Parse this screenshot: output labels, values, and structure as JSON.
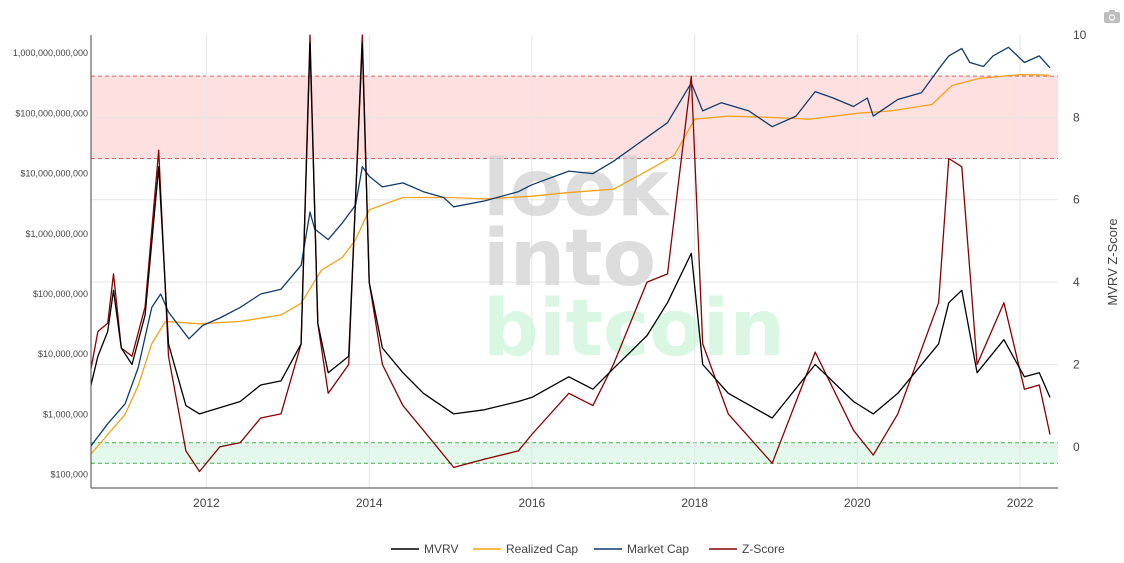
{
  "chart_data": {
    "type": "line",
    "title": "",
    "watermark": [
      "look",
      "into",
      "bitcoin"
    ],
    "colors": {
      "MVRV": "#000000",
      "Realized Cap": "#f7a21b",
      "Market Cap": "#0f3c6e",
      "Z-Score": "#8b0000",
      "top_band": "#ffd6d6",
      "bottom_band": "#d8f7e6"
    },
    "legend_position": "bottom-center",
    "grid": true,
    "x_axis": {
      "type": "date",
      "range": [
        "2010-08-01",
        "2022-06-20"
      ],
      "tick_labels": [
        "2012",
        "2014",
        "2016",
        "2018",
        "2020",
        "2022"
      ],
      "tick_dates": [
        "2012-01-01",
        "2014-01-01",
        "2016-01-01",
        "2018-01-01",
        "2020-01-01",
        "2022-01-01"
      ]
    },
    "y_left": {
      "scale": "log",
      "range": [
        60000,
        2000000000000
      ],
      "tick_labels": [
        "$100,000",
        "$1,000,000",
        "$10,000,000",
        "$100,000,000",
        "$1,000,000,000",
        "$10,000,000,000",
        "$100,000,000,000",
        "1,000,000,000,000"
      ],
      "tick_values": [
        100000,
        1000000,
        10000000,
        100000000,
        1000000000,
        10000000000,
        100000000000,
        1000000000000
      ]
    },
    "y_right": {
      "label": "MVRV Z-Score",
      "scale": "linear",
      "range": [
        -1,
        10
      ],
      "tick_labels": [
        "0",
        "2",
        "4",
        "6",
        "8",
        "10"
      ],
      "tick_values": [
        0,
        2,
        4,
        6,
        8,
        10
      ]
    },
    "bands": [
      {
        "name": "top",
        "axis": "right",
        "from": 7,
        "to": 9
      },
      {
        "name": "bottom",
        "axis": "right",
        "from": -0.4,
        "to": 0.1
      }
    ],
    "series": [
      {
        "name": "Market Cap",
        "axis": "left",
        "points": [
          [
            "2010-08-01",
            300000
          ],
          [
            "2010-10-15",
            700000
          ],
          [
            "2011-01-01",
            1500000
          ],
          [
            "2011-03-01",
            6000000
          ],
          [
            "2011-05-01",
            60000000
          ],
          [
            "2011-06-10",
            100000000
          ],
          [
            "2011-07-15",
            50000000
          ],
          [
            "2011-10-15",
            18000000
          ],
          [
            "2011-12-15",
            30000000
          ],
          [
            "2012-03-01",
            40000000
          ],
          [
            "2012-06-01",
            60000000
          ],
          [
            "2012-09-01",
            100000000
          ],
          [
            "2012-12-01",
            120000000
          ],
          [
            "2013-03-01",
            300000000
          ],
          [
            "2013-04-10",
            2300000000
          ],
          [
            "2013-05-01",
            1200000000
          ],
          [
            "2013-07-01",
            800000000
          ],
          [
            "2013-09-01",
            1500000000
          ],
          [
            "2013-11-01",
            3000000000
          ],
          [
            "2013-12-01",
            13000000000
          ],
          [
            "2014-01-01",
            9000000000
          ],
          [
            "2014-03-01",
            6000000000
          ],
          [
            "2014-06-01",
            7000000000
          ],
          [
            "2014-09-01",
            5000000000
          ],
          [
            "2014-12-01",
            4000000000
          ],
          [
            "2015-01-15",
            2800000000
          ],
          [
            "2015-06-01",
            3500000000
          ],
          [
            "2015-11-01",
            5000000000
          ],
          [
            "2016-01-01",
            6500000000
          ],
          [
            "2016-06-15",
            11000000000
          ],
          [
            "2016-10-01",
            10000000000
          ],
          [
            "2017-01-01",
            16000000000
          ],
          [
            "2017-06-01",
            40000000000
          ],
          [
            "2017-09-01",
            70000000000
          ],
          [
            "2017-12-17",
            320000000000
          ],
          [
            "2018-02-06",
            110000000000
          ],
          [
            "2018-05-01",
            150000000000
          ],
          [
            "2018-09-01",
            110000000000
          ],
          [
            "2018-12-15",
            60000000000
          ],
          [
            "2019-04-01",
            90000000000
          ],
          [
            "2019-06-26",
            230000000000
          ],
          [
            "2019-09-15",
            180000000000
          ],
          [
            "2019-12-15",
            130000000000
          ],
          [
            "2020-02-15",
            180000000000
          ],
          [
            "2020-03-13",
            90000000000
          ],
          [
            "2020-07-01",
            170000000000
          ],
          [
            "2020-10-15",
            220000000000
          ],
          [
            "2020-12-31",
            540000000000
          ],
          [
            "2021-02-15",
            900000000000
          ],
          [
            "2021-04-14",
            1200000000000
          ],
          [
            "2021-05-20",
            700000000000
          ],
          [
            "2021-07-20",
            600000000000
          ],
          [
            "2021-09-01",
            900000000000
          ],
          [
            "2021-11-10",
            1250000000000
          ],
          [
            "2022-01-20",
            700000000000
          ],
          [
            "2022-03-28",
            900000000000
          ],
          [
            "2022-05-15",
            570000000000
          ]
        ]
      },
      {
        "name": "Realized Cap",
        "axis": "left",
        "points": [
          [
            "2010-08-01",
            220000
          ],
          [
            "2011-01-01",
            1000000
          ],
          [
            "2011-03-01",
            3000000
          ],
          [
            "2011-05-01",
            15000000
          ],
          [
            "2011-07-01",
            35000000
          ],
          [
            "2011-12-01",
            32000000
          ],
          [
            "2012-06-01",
            35000000
          ],
          [
            "2012-12-01",
            45000000
          ],
          [
            "2013-03-01",
            70000000
          ],
          [
            "2013-06-01",
            250000000
          ],
          [
            "2013-09-01",
            400000000
          ],
          [
            "2013-11-01",
            800000000
          ],
          [
            "2014-01-01",
            2500000000
          ],
          [
            "2014-06-01",
            4000000000
          ],
          [
            "2015-01-01",
            4000000000
          ],
          [
            "2015-06-01",
            3800000000
          ],
          [
            "2016-01-01",
            4200000000
          ],
          [
            "2016-06-01",
            4800000000
          ],
          [
            "2017-01-01",
            5500000000
          ],
          [
            "2017-06-01",
            11000000000
          ],
          [
            "2017-10-01",
            20000000000
          ],
          [
            "2018-01-01",
            80000000000
          ],
          [
            "2018-06-01",
            90000000000
          ],
          [
            "2019-01-01",
            85000000000
          ],
          [
            "2019-06-01",
            80000000000
          ],
          [
            "2020-01-01",
            100000000000
          ],
          [
            "2020-06-01",
            110000000000
          ],
          [
            "2020-12-01",
            140000000000
          ],
          [
            "2021-03-01",
            290000000000
          ],
          [
            "2021-07-01",
            380000000000
          ],
          [
            "2022-01-01",
            440000000000
          ],
          [
            "2022-05-15",
            430000000000
          ]
        ]
      },
      {
        "name": "MVRV",
        "axis": "right",
        "points": [
          [
            "2010-08-01",
            1.5
          ],
          [
            "2010-09-01",
            2.2
          ],
          [
            "2010-10-15",
            2.8
          ],
          [
            "2010-11-10",
            3.8
          ],
          [
            "2010-12-15",
            2.4
          ],
          [
            "2011-02-01",
            2.0
          ],
          [
            "2011-04-01",
            3.2
          ],
          [
            "2011-06-01",
            6.8
          ],
          [
            "2011-07-15",
            2.5
          ],
          [
            "2011-10-01",
            1.0
          ],
          [
            "2011-12-01",
            0.8
          ],
          [
            "2012-06-01",
            1.1
          ],
          [
            "2012-09-01",
            1.5
          ],
          [
            "2012-12-01",
            1.6
          ],
          [
            "2013-03-01",
            2.5
          ],
          [
            "2013-04-10",
            9.8
          ],
          [
            "2013-05-15",
            3.0
          ],
          [
            "2013-07-01",
            1.8
          ],
          [
            "2013-10-01",
            2.2
          ],
          [
            "2013-12-01",
            9.8
          ],
          [
            "2014-01-01",
            4.0
          ],
          [
            "2014-03-01",
            2.4
          ],
          [
            "2014-06-01",
            1.8
          ],
          [
            "2014-09-01",
            1.3
          ],
          [
            "2015-01-15",
            0.8
          ],
          [
            "2015-06-01",
            0.9
          ],
          [
            "2015-11-01",
            1.1
          ],
          [
            "2016-01-01",
            1.2
          ],
          [
            "2016-06-15",
            1.7
          ],
          [
            "2016-10-01",
            1.4
          ],
          [
            "2017-01-01",
            1.9
          ],
          [
            "2017-06-01",
            2.7
          ],
          [
            "2017-09-01",
            3.5
          ],
          [
            "2017-12-17",
            4.7
          ],
          [
            "2018-02-06",
            2.0
          ],
          [
            "2018-06-01",
            1.3
          ],
          [
            "2018-12-15",
            0.7
          ],
          [
            "2019-06-26",
            2.0
          ],
          [
            "2019-12-15",
            1.1
          ],
          [
            "2020-03-13",
            0.8
          ],
          [
            "2020-07-01",
            1.3
          ],
          [
            "2020-12-31",
            2.5
          ],
          [
            "2021-02-15",
            3.5
          ],
          [
            "2021-04-14",
            3.8
          ],
          [
            "2021-06-22",
            1.8
          ],
          [
            "2021-10-20",
            2.6
          ],
          [
            "2022-01-20",
            1.7
          ],
          [
            "2022-03-28",
            1.8
          ],
          [
            "2022-05-15",
            1.2
          ]
        ]
      },
      {
        "name": "Z-Score",
        "axis": "right",
        "points": [
          [
            "2010-08-01",
            1.9
          ],
          [
            "2010-09-01",
            2.8
          ],
          [
            "2010-10-15",
            3.0
          ],
          [
            "2010-11-10",
            4.2
          ],
          [
            "2010-12-15",
            2.4
          ],
          [
            "2011-02-01",
            2.2
          ],
          [
            "2011-04-01",
            3.4
          ],
          [
            "2011-06-01",
            7.2
          ],
          [
            "2011-07-15",
            2.2
          ],
          [
            "2011-10-01",
            -0.1
          ],
          [
            "2011-12-01",
            -0.6
          ],
          [
            "2012-03-01",
            0.0
          ],
          [
            "2012-06-01",
            0.1
          ],
          [
            "2012-09-01",
            0.7
          ],
          [
            "2012-12-01",
            0.8
          ],
          [
            "2013-03-01",
            2.5
          ],
          [
            "2013-04-10",
            10.0
          ],
          [
            "2013-05-15",
            3.0
          ],
          [
            "2013-07-01",
            1.3
          ],
          [
            "2013-10-01",
            2.0
          ],
          [
            "2013-12-01",
            10.0
          ],
          [
            "2014-01-01",
            4.0
          ],
          [
            "2014-03-01",
            2.0
          ],
          [
            "2014-06-01",
            1.0
          ],
          [
            "2014-09-01",
            0.4
          ],
          [
            "2015-01-15",
            -0.5
          ],
          [
            "2015-06-01",
            -0.3
          ],
          [
            "2015-11-01",
            -0.1
          ],
          [
            "2016-01-01",
            0.3
          ],
          [
            "2016-06-15",
            1.3
          ],
          [
            "2016-10-01",
            1.0
          ],
          [
            "2017-01-01",
            2.0
          ],
          [
            "2017-06-01",
            4.0
          ],
          [
            "2017-09-01",
            4.2
          ],
          [
            "2017-12-17",
            9.0
          ],
          [
            "2018-02-06",
            2.5
          ],
          [
            "2018-06-01",
            0.8
          ],
          [
            "2018-12-15",
            -0.4
          ],
          [
            "2019-06-26",
            2.3
          ],
          [
            "2019-12-15",
            0.4
          ],
          [
            "2020-03-13",
            -0.2
          ],
          [
            "2020-07-01",
            0.8
          ],
          [
            "2020-12-31",
            3.5
          ],
          [
            "2021-02-15",
            7.0
          ],
          [
            "2021-04-14",
            6.8
          ],
          [
            "2021-06-22",
            2.0
          ],
          [
            "2021-10-20",
            3.5
          ],
          [
            "2022-01-20",
            1.4
          ],
          [
            "2022-03-28",
            1.5
          ],
          [
            "2022-05-15",
            0.3
          ]
        ]
      }
    ]
  }
}
